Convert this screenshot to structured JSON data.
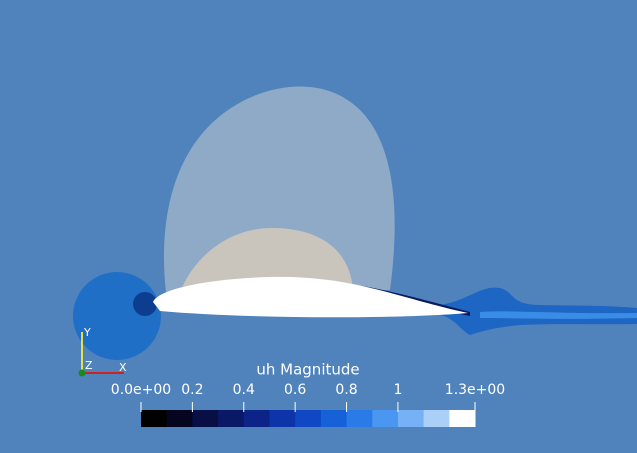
{
  "colorbar": {
    "title": "uh Magnitude",
    "range": [
      0,
      1.3
    ],
    "ticks": [
      {
        "value": 0,
        "label": "0.0e+00"
      },
      0.2,
      0.4,
      0.6,
      0.8,
      1,
      {
        "value": 1.3,
        "label": "1.3e+00"
      }
    ],
    "colors": [
      "#000000",
      "#05051f",
      "#080f45",
      "#0a1866",
      "#0c2488",
      "#0d34a8",
      "#0f48c2",
      "#1660d8",
      "#2a7be8",
      "#4a96f0",
      "#76b1f5",
      "#abd0f8",
      "#ffffff"
    ]
  },
  "axes": {
    "y": "Y",
    "z": "Z",
    "x": "X"
  }
}
